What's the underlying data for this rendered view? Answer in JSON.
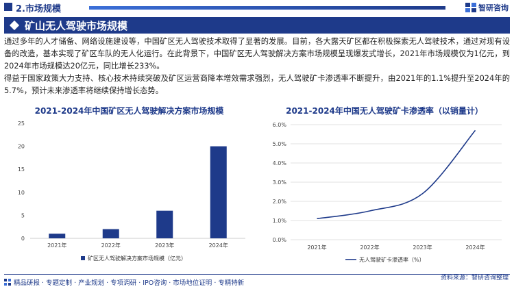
{
  "header": {
    "section_title": "2.市场规模",
    "brand": "智研咨询"
  },
  "banner": {
    "title": "矿山无人驾驶市场规模"
  },
  "body": {
    "paragraph1": "通过多年的人才储备、网络设施建设等，中国矿区无人驾驶技术取得了显著的发展。目前，各大露天矿区都在积极探索无人驾驶技术，通过对现有设备的改造，基本实现了矿区车队的无人化运行。在此背景下，中国矿区无人驾驶解决方案市场规模呈现爆发式增长，2021年市场规模仅为1亿元，到2024年市场规模达20亿元，同比增长233%。",
    "paragraph2": "得益于国家政策大力支持、核心技术持续突破及矿区运营商降本增效需求强烈，无人驾驶矿卡渗透率不断提升，由2021年的1.1%提升至2024年的5.7%，预计未来渗透率将继续保持增长态势。"
  },
  "footer": {
    "left": "精品研报 · 专题定制 · 产业规划 · 专项调研 · IPO咨询 · 市场地位证明 · 专精特新",
    "source": "资料来源：智研咨询整理"
  },
  "colors": {
    "brand": "#1e3a8a",
    "bar": "#1e3a8a",
    "line": "#1e3a8a",
    "grid": "#e0e0e0",
    "axis": "#cccccc"
  },
  "chart_data": [
    {
      "type": "bar",
      "title": "2021-2024年中国矿区无人驾驶解决方案市场规模",
      "categories": [
        "2021年",
        "2022年",
        "2023年",
        "2024年"
      ],
      "series": [
        {
          "name": "矿区无人驾驶解决方案市场规模（亿元）",
          "values": [
            1,
            2,
            6,
            20
          ]
        }
      ],
      "ylim": [
        0,
        25
      ],
      "yticks": [
        "0",
        "5",
        "10",
        "15",
        "20",
        "25"
      ],
      "grid": false,
      "legend": "bottom-center"
    },
    {
      "type": "line",
      "title": "2021-2024年中国无人驾驶矿卡渗透率（以销量计）",
      "categories": [
        "2021年",
        "2022年",
        "2023年",
        "2024年"
      ],
      "series": [
        {
          "name": "无人驾驶矿卡渗透率（%）",
          "values": [
            1.1,
            1.5,
            2.4,
            5.7
          ]
        }
      ],
      "ylim": [
        0,
        6
      ],
      "yticks": [
        "0.0%",
        "1.0%",
        "2.0%",
        "3.0%",
        "4.0%",
        "5.0%",
        "6.0%"
      ],
      "grid": true,
      "legend": "bottom-center"
    }
  ]
}
